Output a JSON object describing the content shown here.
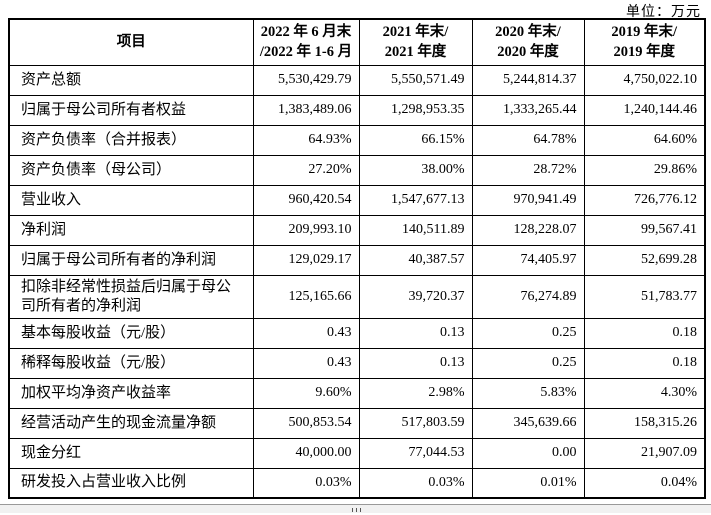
{
  "unit_label": "单位：万元",
  "colors": {
    "table_border": "#000000",
    "scrollbar_track": "#f1f1f1"
  },
  "icons": {
    "bottom_grip": "drag-handle-dots-icon"
  },
  "table": {
    "header": {
      "item": "项目",
      "periods": [
        {
          "line1": "2022 年 6 月末",
          "line2": "/2022 年 1-6 月"
        },
        {
          "line1": "2021 年末/",
          "line2": "2021 年度"
        },
        {
          "line1": "2020 年末/",
          "line2": "2020 年度"
        },
        {
          "line1": "2019 年末/",
          "line2": "2019 年度"
        }
      ]
    },
    "rows": [
      {
        "label": "资产总额",
        "values": [
          "5,530,429.79",
          "5,550,571.49",
          "5,244,814.37",
          "4,750,022.10"
        ]
      },
      {
        "label": "归属于母公司所有者权益",
        "values": [
          "1,383,489.06",
          "1,298,953.35",
          "1,333,265.44",
          "1,240,144.46"
        ]
      },
      {
        "label": "资产负债率（合并报表）",
        "values": [
          "64.93%",
          "66.15%",
          "64.78%",
          "64.60%"
        ]
      },
      {
        "label": "资产负债率（母公司）",
        "values": [
          "27.20%",
          "38.00%",
          "28.72%",
          "29.86%"
        ]
      },
      {
        "label": "营业收入",
        "values": [
          "960,420.54",
          "1,547,677.13",
          "970,941.49",
          "726,776.12"
        ]
      },
      {
        "label": "净利润",
        "values": [
          "209,993.10",
          "140,511.89",
          "128,228.07",
          "99,567.41"
        ]
      },
      {
        "label": "归属于母公司所有者的净利润",
        "values": [
          "129,029.17",
          "40,387.57",
          "74,405.97",
          "52,699.28"
        ]
      },
      {
        "label": "扣除非经常性损益后归属于母公司所有者的净利润",
        "values": [
          "125,165.66",
          "39,720.37",
          "76,274.89",
          "51,783.77"
        ]
      },
      {
        "label": "基本每股收益（元/股）",
        "values": [
          "0.43",
          "0.13",
          "0.25",
          "0.18"
        ]
      },
      {
        "label": "稀释每股收益（元/股）",
        "values": [
          "0.43",
          "0.13",
          "0.25",
          "0.18"
        ]
      },
      {
        "label": "加权平均净资产收益率",
        "values": [
          "9.60%",
          "2.98%",
          "5.83%",
          "4.30%"
        ]
      },
      {
        "label": "经营活动产生的现金流量净额",
        "values": [
          "500,853.54",
          "517,803.59",
          "345,639.66",
          "158,315.26"
        ]
      },
      {
        "label": "现金分红",
        "values": [
          "40,000.00",
          "77,044.53",
          "0.00",
          "21,907.09"
        ]
      },
      {
        "label": "研发投入占营业收入比例",
        "values": [
          "0.03%",
          "0.03%",
          "0.01%",
          "0.04%"
        ]
      }
    ]
  }
}
